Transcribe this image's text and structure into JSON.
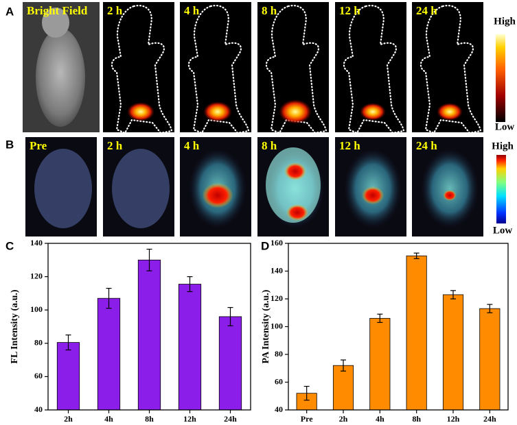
{
  "panels": {
    "A": {
      "label": "A",
      "images": [
        "Bright Field",
        "2 h",
        "4 h",
        "8 h",
        "12 h",
        "24 h"
      ],
      "scale_high": "High",
      "scale_low": "Low"
    },
    "B": {
      "label": "B",
      "images": [
        "Pre",
        "2 h",
        "4 h",
        "8 h",
        "12 h",
        "24 h"
      ],
      "scale_high": "High",
      "scale_low": "Low"
    }
  },
  "chart_data": [
    {
      "type": "bar",
      "panel_label": "C",
      "y_label": "FL Intensity (a.u.)",
      "color": "#8b1ee8",
      "categories": [
        "2h",
        "4h",
        "8h",
        "12h",
        "24h"
      ],
      "values": [
        80.5,
        107,
        130,
        115.5,
        96
      ],
      "errors": [
        4.5,
        6,
        6.5,
        4.5,
        5.5
      ],
      "ylim": [
        40,
        140
      ],
      "yticks": [
        40,
        60,
        80,
        100,
        120,
        140
      ]
    },
    {
      "type": "bar",
      "panel_label": "D",
      "y_label": "PA Intensity (a.u.)",
      "color": "#ff8c00",
      "categories": [
        "Pre",
        "2h",
        "4h",
        "8h",
        "12h",
        "24h"
      ],
      "values": [
        52,
        72,
        106,
        151,
        123,
        113
      ],
      "errors": [
        5,
        4,
        3,
        2,
        3,
        3
      ],
      "ylim": [
        40,
        160
      ],
      "yticks": [
        40,
        60,
        80,
        100,
        120,
        140,
        160
      ]
    }
  ]
}
